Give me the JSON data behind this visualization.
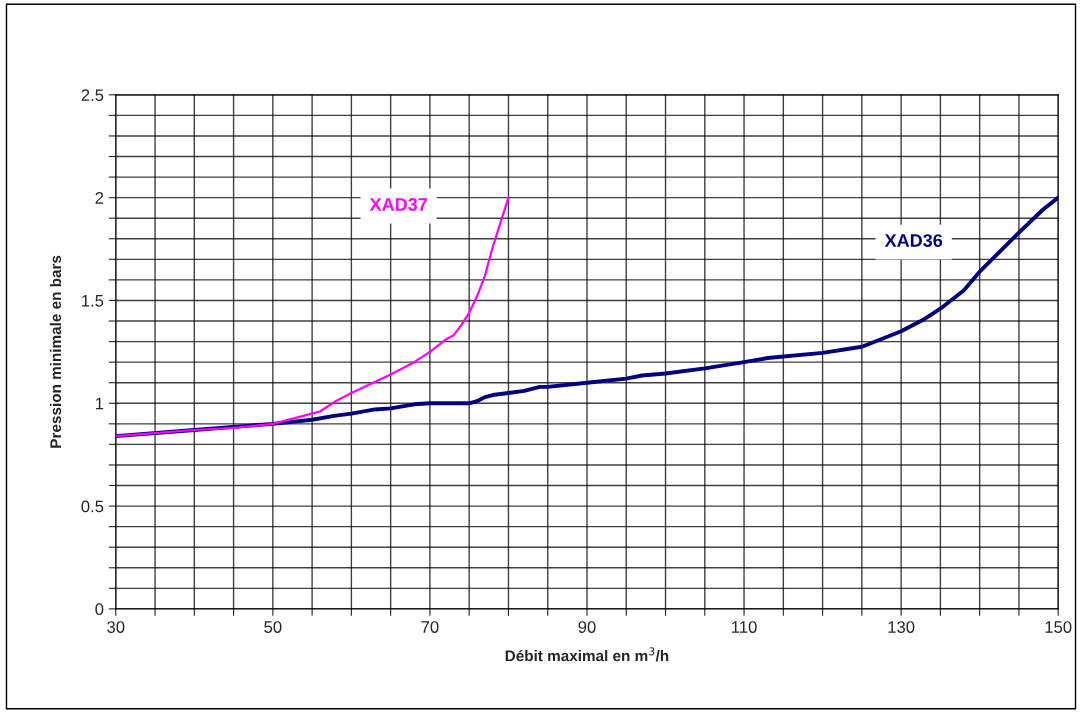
{
  "chart_data": {
    "type": "line",
    "xlabel": "Débit maximal en m$^{3}$/h",
    "ylabel": "Pression minimale en bars",
    "xlim": [
      30,
      150
    ],
    "ylim": [
      0,
      2.5
    ],
    "xticks": [
      30,
      {
        "value": 35,
        "label": null
      },
      {
        "value": 40,
        "label": null
      },
      {
        "value": 45,
        "label": null
      },
      50,
      {
        "value": 55,
        "label": null
      },
      {
        "value": 60,
        "label": null
      },
      {
        "value": 65,
        "label": null
      },
      70,
      {
        "value": 75,
        "label": null
      },
      {
        "value": 80,
        "label": null
      },
      {
        "value": 85,
        "label": null
      },
      90,
      {
        "value": 95,
        "label": null
      },
      {
        "value": 100,
        "label": null
      },
      {
        "value": 105,
        "label": null
      },
      110,
      {
        "value": 115,
        "label": null
      },
      {
        "value": 120,
        "label": null
      },
      {
        "value": 125,
        "label": null
      },
      130,
      {
        "value": 135,
        "label": null
      },
      {
        "value": 140,
        "label": null
      },
      {
        "value": 145,
        "label": null
      },
      150
    ],
    "yticks": [
      0,
      {
        "value": 0.1,
        "label": null
      },
      {
        "value": 0.2,
        "label": null
      },
      {
        "value": 0.3,
        "label": null
      },
      {
        "value": 0.4,
        "label": null
      },
      0.5,
      {
        "value": 0.6,
        "label": null
      },
      {
        "value": 0.7,
        "label": null
      },
      {
        "value": 0.8,
        "label": null
      },
      {
        "value": 0.9,
        "label": null
      },
      1,
      {
        "value": 1.1,
        "label": null
      },
      {
        "value": 1.2,
        "label": null
      },
      {
        "value": 1.3,
        "label": null
      },
      {
        "value": 1.4,
        "label": null
      },
      1.5,
      {
        "value": 1.6,
        "label": null
      },
      {
        "value": 1.7,
        "label": null
      },
      {
        "value": 1.8,
        "label": null
      },
      {
        "value": 1.9,
        "label": null
      },
      2,
      {
        "value": 2.1,
        "label": null
      },
      {
        "value": 2.2,
        "label": null
      },
      {
        "value": 2.3,
        "label": null
      },
      {
        "value": 2.4,
        "label": null
      },
      2.5
    ],
    "grid": true,
    "legend": false,
    "marker": "none",
    "line_style": "solid",
    "series": [
      {
        "name": "XAD37",
        "color": "#ff00ff",
        "x": [
          30,
          40,
          45,
          50,
          54,
          56,
          58,
          60,
          65,
          68,
          70,
          72,
          73,
          74,
          75,
          76,
          77,
          78,
          79,
          80
        ],
        "values": [
          0.84,
          0.87,
          0.88,
          0.9,
          0.94,
          0.96,
          1.01,
          1.05,
          1.14,
          1.2,
          1.25,
          1.31,
          1.33,
          1.38,
          1.44,
          1.52,
          1.62,
          1.76,
          1.88,
          2.0
        ]
      },
      {
        "name": "XAD36",
        "color": "#000080",
        "x": [
          30,
          40,
          50,
          55,
          58,
          60,
          63,
          65,
          68,
          70,
          75,
          76,
          77,
          78,
          80,
          82,
          84,
          85,
          90,
          95,
          97,
          100,
          105,
          110,
          113,
          120,
          125,
          128,
          130,
          133,
          135,
          138,
          140,
          145,
          148,
          150
        ],
        "values": [
          0.84,
          0.87,
          0.9,
          0.92,
          0.94,
          0.95,
          0.97,
          0.975,
          0.995,
          1.0,
          1.0,
          1.01,
          1.03,
          1.04,
          1.05,
          1.06,
          1.08,
          1.08,
          1.1,
          1.12,
          1.135,
          1.145,
          1.17,
          1.2,
          1.22,
          1.245,
          1.275,
          1.32,
          1.35,
          1.41,
          1.46,
          1.55,
          1.64,
          1.83,
          1.94,
          2.0
        ]
      }
    ]
  }
}
